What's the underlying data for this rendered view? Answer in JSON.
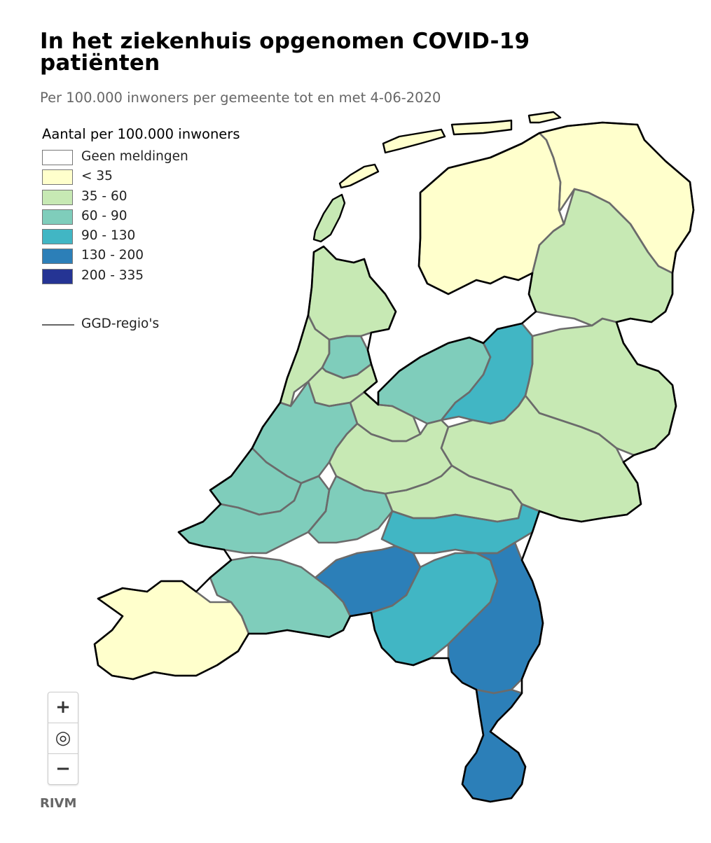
{
  "header": {
    "title": "In het ziekenhuis opgenomen COVID-19 patiënten",
    "subtitle": "Per 100.000 inwoners per gemeente tot en met 4-06-2020"
  },
  "legend": {
    "title": "Aantal per 100.000 inwoners",
    "classes": [
      {
        "label": "Geen meldingen",
        "color": "#ffffff"
      },
      {
        "label": "< 35",
        "color": "#ffffcc"
      },
      {
        "label": "35 - 60",
        "color": "#c7e9b4"
      },
      {
        "label": "60 - 90",
        "color": "#7fcdbb"
      },
      {
        "label": "90 - 130",
        "color": "#41b6c4"
      },
      {
        "label": "130 - 200",
        "color": "#2c7fb8"
      },
      {
        "label": "200 - 335",
        "color": "#253494"
      }
    ],
    "boundary_label": "GGD-regio's",
    "boundary_color": "#666666"
  },
  "controls": {
    "zoom_in": "+",
    "reset": "◎",
    "zoom_out": "−"
  },
  "source": "RIVM",
  "map_regions": [
    {
      "name": "friesland",
      "class": 1
    },
    {
      "name": "groningen",
      "class": 1
    },
    {
      "name": "drenthe",
      "class": 2
    },
    {
      "name": "noord-holland-noord",
      "class": 2
    },
    {
      "name": "kennemerland",
      "class": 2
    },
    {
      "name": "amsterdam",
      "class": 2
    },
    {
      "name": "zaanstreek",
      "class": 3
    },
    {
      "name": "flevoland",
      "class": 3
    },
    {
      "name": "ijsselland",
      "class": 4
    },
    {
      "name": "twente",
      "class": 2
    },
    {
      "name": "gelderland-noord-oost",
      "class": 2
    },
    {
      "name": "gooi-en-vechtstreek",
      "class": 2
    },
    {
      "name": "utrecht",
      "class": 2
    },
    {
      "name": "hollands-midden",
      "class": 3
    },
    {
      "name": "haaglanden",
      "class": 3
    },
    {
      "name": "rotterdam-rijnmond",
      "class": 3
    },
    {
      "name": "zuid-holland-zuid",
      "class": 3
    },
    {
      "name": "gelderland-midden",
      "class": 2
    },
    {
      "name": "gelderland-zuid",
      "class": 4
    },
    {
      "name": "zeeland",
      "class": 1
    },
    {
      "name": "west-brabant",
      "class": 3
    },
    {
      "name": "hart-voor-brabant",
      "class": 5
    },
    {
      "name": "brabant-zuidoost",
      "class": 4
    },
    {
      "name": "limburg-noord",
      "class": 5
    },
    {
      "name": "zuid-limburg",
      "class": 5
    }
  ]
}
